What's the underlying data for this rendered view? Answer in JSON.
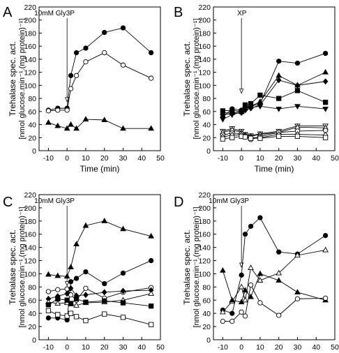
{
  "chart_data": [
    {
      "panel": "A",
      "type": "line",
      "annotation": "10mM Gly3P",
      "xlabel": "Time (min)",
      "ylabel": "Trehalase spec. act.",
      "ylabel2": "[nmol glucose.min⁻¹.(mg protein)⁻¹]",
      "xlim": [
        -15,
        50
      ],
      "ylim": [
        0,
        220
      ],
      "xticks": [
        -10,
        0,
        10,
        20,
        30,
        40,
        50
      ],
      "yticks": [
        0,
        20,
        40,
        60,
        80,
        100,
        120,
        140,
        160,
        180,
        200,
        220
      ],
      "series": [
        {
          "marker": "circle",
          "filled": true,
          "x": [
            -10,
            -5,
            0,
            2,
            5,
            10,
            20,
            30,
            45
          ],
          "y": [
            62,
            65,
            65,
            115,
            150,
            157,
            181,
            188,
            150
          ]
        },
        {
          "marker": "circle",
          "filled": false,
          "x": [
            -10,
            -5,
            0,
            2,
            5,
            10,
            20,
            30,
            45
          ],
          "y": [
            61,
            62,
            62,
            95,
            115,
            136,
            150,
            131,
            111
          ]
        },
        {
          "marker": "triangle",
          "filled": true,
          "x": [
            -10,
            -5,
            0,
            2,
            5,
            10,
            20,
            30,
            45
          ],
          "y": [
            43,
            38,
            34,
            40,
            34,
            48,
            47,
            34,
            34
          ]
        }
      ]
    },
    {
      "panel": "B",
      "type": "line",
      "annotation": "XP",
      "xlabel": "Time (min)",
      "ylabel": "Trehalase spec. act.",
      "ylabel2": "[nmol glucose.min⁻¹.(mg protein)⁻¹]",
      "xlim": [
        -15,
        50
      ],
      "ylim": [
        0,
        220
      ],
      "xticks": [
        -10,
        0,
        10,
        20,
        30,
        40,
        50
      ],
      "yticks": [
        0,
        20,
        40,
        60,
        80,
        100,
        120,
        140,
        160,
        180,
        200,
        220
      ],
      "series": [
        {
          "marker": "circle",
          "filled": true,
          "x": [
            -10,
            -5,
            0,
            2,
            5,
            10,
            20,
            30,
            45
          ],
          "y": [
            52,
            64,
            62,
            67,
            68,
            72,
            137,
            134,
            149
          ]
        },
        {
          "marker": "triangle",
          "filled": true,
          "x": [
            -10,
            -5,
            0,
            2,
            5,
            10,
            20,
            30,
            45
          ],
          "y": [
            58,
            58,
            60,
            65,
            68,
            75,
            115,
            100,
            120
          ]
        },
        {
          "marker": "diamond",
          "filled": true,
          "x": [
            -10,
            -5,
            0,
            2,
            5,
            10,
            20,
            30,
            45
          ],
          "y": [
            55,
            57,
            58,
            62,
            65,
            70,
            108,
            100,
            106
          ]
        },
        {
          "marker": "square",
          "filled": true,
          "x": [
            -10,
            -5,
            0,
            2,
            5,
            10,
            20,
            30,
            45
          ],
          "y": [
            61,
            62,
            60,
            70,
            72,
            85,
            80,
            92,
            74
          ]
        },
        {
          "marker": "triangle-down",
          "filled": true,
          "x": [
            -10,
            -5,
            0,
            2,
            5,
            10,
            20,
            30,
            45
          ],
          "y": [
            48,
            55,
            59,
            64,
            66,
            68,
            64,
            68,
            64
          ]
        },
        {
          "marker": "triangle-down",
          "filled": false,
          "x": [
            -10,
            -5,
            0,
            2,
            5,
            10,
            20,
            30,
            45
          ],
          "y": [
            30,
            34,
            30,
            25,
            23,
            26,
            30,
            38,
            38
          ]
        },
        {
          "marker": "triangle",
          "filled": false,
          "x": [
            -10,
            -5,
            0,
            2,
            5,
            10,
            20,
            30,
            45
          ],
          "y": [
            28,
            32,
            28,
            24,
            22,
            25,
            28,
            36,
            35
          ]
        },
        {
          "marker": "circle",
          "filled": false,
          "x": [
            -10,
            -5,
            0,
            2,
            5,
            10,
            20,
            30,
            45
          ],
          "y": [
            24,
            27,
            26,
            22,
            17,
            22,
            28,
            30,
            31
          ]
        },
        {
          "marker": "diamond",
          "filled": false,
          "x": [
            -10,
            -5,
            0,
            2,
            5,
            10,
            20,
            30,
            45
          ],
          "y": [
            21,
            24,
            24,
            22,
            20,
            20,
            25,
            25,
            24
          ]
        },
        {
          "marker": "square",
          "filled": false,
          "x": [
            -10,
            -5,
            0,
            2,
            5,
            10,
            20,
            30,
            45
          ],
          "y": [
            18,
            20,
            22,
            21,
            19,
            19,
            22,
            22,
            20
          ]
        }
      ]
    },
    {
      "panel": "C",
      "type": "line",
      "annotation": "10mM Gly3P",
      "xlabel": "Time (min)",
      "ylabel": "Trehalase spec. act.",
      "ylabel2": "[nmol glucose.min⁻¹.(mg protein)⁻¹]",
      "xlim": [
        -15,
        50
      ],
      "ylim": [
        0,
        220
      ],
      "xticks": [
        -10,
        0,
        10,
        20,
        30,
        40,
        50
      ],
      "yticks": [
        0,
        20,
        40,
        60,
        80,
        100,
        120,
        140,
        160,
        180,
        200,
        220
      ],
      "series": [
        {
          "marker": "triangle",
          "filled": true,
          "x": [
            -10,
            -5,
            0,
            2,
            5,
            10,
            20,
            30,
            45
          ],
          "y": [
            99,
            97,
            96,
            110,
            145,
            173,
            180,
            168,
            157
          ]
        },
        {
          "marker": "circle",
          "filled": true,
          "x": [
            -10,
            -5,
            0,
            2,
            5,
            10,
            20,
            30,
            45
          ],
          "y": [
            33,
            33,
            30,
            88,
            93,
            103,
            85,
            101,
            120
          ]
        },
        {
          "marker": "circle",
          "filled": false,
          "x": [
            -10,
            -5,
            0,
            2,
            5,
            10,
            20,
            30,
            45
          ],
          "y": [
            73,
            76,
            77,
            68,
            60,
            78,
            63,
            72,
            79
          ]
        },
        {
          "marker": "diamond",
          "filled": true,
          "x": [
            -10,
            -5,
            0,
            2,
            5,
            10,
            20,
            30,
            45
          ],
          "y": [
            62,
            66,
            70,
            78,
            67,
            68,
            72,
            74,
            75
          ]
        },
        {
          "marker": "triangle",
          "filled": false,
          "x": [
            -10,
            -5,
            0,
            2,
            5,
            10,
            20,
            30,
            45
          ],
          "y": [
            57,
            55,
            56,
            54,
            52,
            56,
            57,
            60,
            70
          ]
        },
        {
          "marker": "square",
          "filled": true,
          "x": [
            -10,
            -5,
            0,
            2,
            5,
            10,
            20,
            30,
            45
          ],
          "y": [
            53,
            62,
            60,
            55,
            62,
            57,
            59,
            56,
            51
          ]
        },
        {
          "marker": "square",
          "filled": false,
          "x": [
            -10,
            -5,
            0,
            2,
            5,
            10,
            20,
            30,
            45
          ],
          "y": [
            44,
            38,
            36,
            40,
            35,
            29,
            39,
            34,
            23
          ]
        }
      ]
    },
    {
      "panel": "D",
      "type": "line",
      "annotation": "10mM Gly3P",
      "xlabel": "Time (min)",
      "ylabel": "Trehalase spec. act.",
      "ylabel2": "[nmol glucose.min⁻¹.(mg protein)⁻¹]",
      "xlim": [
        -15,
        50
      ],
      "ylim": [
        0,
        220
      ],
      "xticks": [
        -10,
        0,
        10,
        20,
        30,
        40,
        50
      ],
      "yticks": [
        0,
        20,
        40,
        60,
        80,
        100,
        120,
        140,
        160,
        180,
        200,
        220
      ],
      "series": [
        {
          "marker": "circle",
          "filled": true,
          "x": [
            -10,
            -5,
            0,
            2,
            5,
            10,
            20,
            30,
            45
          ],
          "y": [
            45,
            40,
            98,
            160,
            172,
            185,
            133,
            130,
            158
          ]
        },
        {
          "marker": "triangle",
          "filled": false,
          "x": [
            -10,
            -5,
            0,
            2,
            5,
            10,
            20,
            30,
            45
          ],
          "y": [
            42,
            58,
            80,
            60,
            109,
            90,
            101,
            128,
            136
          ]
        },
        {
          "marker": "triangle",
          "filled": true,
          "x": [
            -10,
            -5,
            0,
            2,
            5,
            10,
            20,
            30,
            45
          ],
          "y": [
            105,
            60,
            57,
            75,
            65,
            100,
            90,
            72,
            60
          ]
        },
        {
          "marker": "circle",
          "filled": false,
          "x": [
            -10,
            -5,
            0,
            2,
            5,
            10,
            20,
            30,
            45
          ],
          "y": [
            28,
            28,
            42,
            36,
            83,
            56,
            37,
            62,
            63
          ]
        }
      ]
    }
  ],
  "panel_labels": [
    "A",
    "B",
    "C",
    "D"
  ]
}
